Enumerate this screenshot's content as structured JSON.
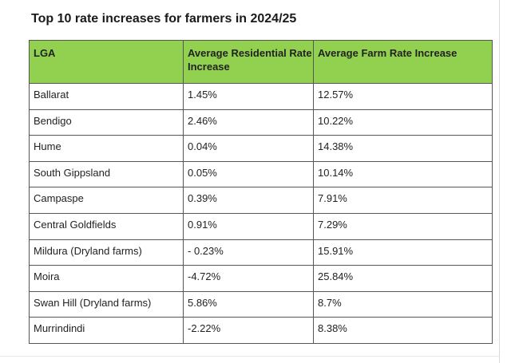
{
  "title": "Top 10 rate increases for farmers in 2024/25",
  "colors": {
    "header_background": "#92d050",
    "border": "#555555"
  },
  "columns": [
    "LGA",
    "Average Residential Rate Increase",
    "Average Farm Rate Increase"
  ],
  "rows": [
    {
      "lga": "Ballarat",
      "residential": "1.45%",
      "farm": "12.57%"
    },
    {
      "lga": "Bendigo",
      "residential": "2.46%",
      "farm": "10.22%"
    },
    {
      "lga": "Hume",
      "residential": "0.04%",
      "farm": "14.38%"
    },
    {
      "lga": "South Gippsland",
      "residential": "0.05%",
      "farm": "10.14%"
    },
    {
      "lga": "Campaspe",
      "residential": "0.39%",
      "farm": "7.91%"
    },
    {
      "lga": "Central Goldfields",
      "residential": "0.91%",
      "farm": "7.29%"
    },
    {
      "lga": "Mildura (Dryland farms)",
      "residential": "- 0.23%",
      "farm": "15.91%"
    },
    {
      "lga": "Moira",
      "residential": "-4.72%",
      "farm": "25.84%"
    },
    {
      "lga": "Swan Hill (Dryland farms)",
      "residential": "5.86%",
      "farm": "8.7%"
    },
    {
      "lga": "Murrindindi",
      "residential": "-2.22%",
      "farm": "8.38%"
    }
  ]
}
